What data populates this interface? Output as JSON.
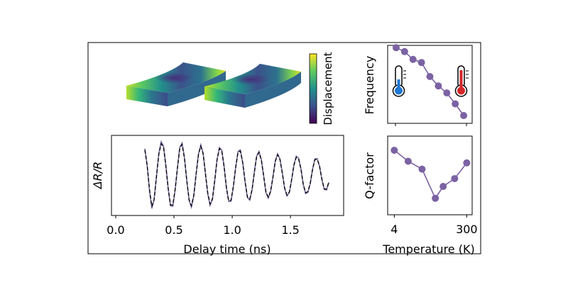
{
  "colorbar": {
    "label": "Displacement"
  },
  "chart_data": [
    {
      "type": "line",
      "xlabel": "Delay time (ns)",
      "ylabel": "ΔR/R",
      "xlim": [
        0.0,
        1.92
      ],
      "xticks": [
        0.0,
        0.5,
        1.0,
        1.5
      ],
      "xtick_labels": [
        "0.0",
        "0.5",
        "1.0",
        "1.5"
      ],
      "yticks_shown": false,
      "grid": false,
      "series": [
        {
          "style": "solid",
          "color": "#7b6a9e",
          "x": [
            0.25,
            0.27,
            0.29,
            0.31,
            0.33,
            0.35,
            0.37,
            0.39,
            0.41,
            0.43,
            0.45,
            0.47,
            0.49,
            0.51,
            0.53,
            0.55,
            0.57,
            0.59,
            0.61,
            0.63,
            0.65,
            0.67,
            0.69,
            0.71,
            0.73,
            0.75,
            0.77,
            0.79,
            0.81,
            0.83,
            0.85,
            0.87,
            0.89,
            0.91,
            0.93,
            0.95,
            0.97,
            0.99,
            1.01,
            1.03,
            1.05,
            1.07,
            1.09,
            1.11,
            1.13,
            1.15,
            1.17,
            1.19,
            1.21,
            1.23,
            1.25,
            1.27,
            1.29,
            1.31,
            1.33,
            1.35,
            1.37,
            1.39,
            1.41,
            1.43,
            1.45,
            1.47,
            1.49,
            1.51,
            1.53,
            1.55,
            1.57,
            1.59,
            1.61,
            1.63,
            1.65,
            1.67,
            1.69,
            1.71,
            1.73,
            1.75,
            1.77,
            1.79,
            1.81,
            1.83
          ],
          "y": [
            0.78,
            0.3,
            -0.45,
            -0.96,
            -0.7,
            -0.02,
            0.63,
            0.98,
            0.86,
            0.31,
            -0.37,
            -0.88,
            -0.9,
            -0.42,
            0.24,
            0.82,
            0.94,
            0.52,
            -0.16,
            -0.73,
            -0.92,
            -0.6,
            0.04,
            0.62,
            0.89,
            0.66,
            0.07,
            -0.53,
            -0.87,
            -0.7,
            -0.14,
            0.46,
            0.81,
            0.74,
            0.27,
            -0.36,
            -0.76,
            -0.75,
            -0.33,
            0.25,
            0.7,
            0.74,
            0.39,
            -0.17,
            -0.64,
            -0.72,
            -0.43,
            0.09,
            0.57,
            0.7,
            0.46,
            -0.02,
            -0.5,
            -0.66,
            -0.47,
            -0.04,
            0.43,
            0.63,
            0.48,
            0.08,
            -0.38,
            -0.6,
            -0.5,
            -0.14,
            0.31,
            0.56,
            0.5,
            0.19,
            -0.26,
            -0.53,
            -0.49,
            -0.23,
            0.19,
            0.48,
            0.49,
            0.27,
            -0.12,
            -0.41,
            -0.42,
            -0.2
          ]
        },
        {
          "style": "dashed",
          "color": "#000000",
          "x": [
            0.25,
            0.27,
            0.29,
            0.31,
            0.33,
            0.35,
            0.37,
            0.39,
            0.41,
            0.43,
            0.45,
            0.47,
            0.49,
            0.51,
            0.53,
            0.55,
            0.57,
            0.59,
            0.61,
            0.63,
            0.65,
            0.67,
            0.69,
            0.71,
            0.73,
            0.75,
            0.77,
            0.79,
            0.81,
            0.83,
            0.85,
            0.87,
            0.89,
            0.91,
            0.93,
            0.95,
            0.97,
            0.99,
            1.01,
            1.03,
            1.05,
            1.07,
            1.09,
            1.11,
            1.13,
            1.15,
            1.17,
            1.19,
            1.21,
            1.23,
            1.25,
            1.27,
            1.29,
            1.31,
            1.33,
            1.35,
            1.37,
            1.39,
            1.41,
            1.43,
            1.45,
            1.47,
            1.49,
            1.51,
            1.53,
            1.55,
            1.57,
            1.59,
            1.61,
            1.63,
            1.65,
            1.67,
            1.69,
            1.71,
            1.73,
            1.75,
            1.77,
            1.79,
            1.81,
            1.83
          ],
          "y": [
            0.74,
            0.28,
            -0.42,
            -0.9,
            -0.7,
            -0.03,
            0.62,
            0.92,
            0.82,
            0.29,
            -0.36,
            -0.86,
            -0.86,
            -0.4,
            0.22,
            0.79,
            0.9,
            0.5,
            -0.15,
            -0.71,
            -0.88,
            -0.58,
            0.03,
            0.6,
            0.85,
            0.64,
            0.06,
            -0.51,
            -0.83,
            -0.68,
            -0.13,
            0.45,
            0.78,
            0.72,
            0.26,
            -0.35,
            -0.74,
            -0.72,
            -0.31,
            0.24,
            0.68,
            0.71,
            0.37,
            -0.16,
            -0.62,
            -0.69,
            -0.41,
            0.08,
            0.55,
            0.67,
            0.44,
            -0.02,
            -0.48,
            -0.63,
            -0.45,
            -0.04,
            0.41,
            0.6,
            0.46,
            0.07,
            -0.36,
            -0.57,
            -0.48,
            -0.13,
            0.3,
            0.53,
            0.48,
            0.18,
            -0.25,
            -0.5,
            -0.47,
            -0.22,
            0.18,
            0.46,
            0.47,
            0.26,
            -0.11,
            -0.39,
            -0.4,
            -0.19
          ]
        }
      ]
    },
    {
      "type": "line",
      "ylabel": "Frequency",
      "xlim": [
        0,
        10
      ],
      "ylim": [
        0,
        10
      ],
      "xticks_shown": false,
      "yticks_shown": false,
      "markers": true,
      "color": "#7b62a3",
      "series": [
        {
          "x": [
            1,
            2,
            3,
            4,
            5,
            6,
            7,
            8,
            9
          ],
          "y": [
            9.7,
            9.2,
            8.2,
            7.8,
            6.0,
            4.8,
            3.9,
            2.5,
            1.0
          ]
        }
      ]
    },
    {
      "type": "line",
      "ylabel": "Q-factor",
      "xlabel": "Temperature (K)",
      "xlim": [
        0,
        7
      ],
      "ylim": [
        0,
        10
      ],
      "xtick_labels": [
        "4",
        "300"
      ],
      "xticks_at": [
        0.55,
        6.55
      ],
      "yticks_shown": false,
      "markers": true,
      "color": "#7b62a3",
      "series": [
        {
          "x": [
            0.55,
            1.7,
            2.85,
            3.95,
            4.6,
            5.55,
            6.55
          ],
          "y": [
            8.2,
            6.8,
            5.8,
            2.1,
            3.6,
            4.6,
            6.6
          ]
        }
      ]
    }
  ]
}
